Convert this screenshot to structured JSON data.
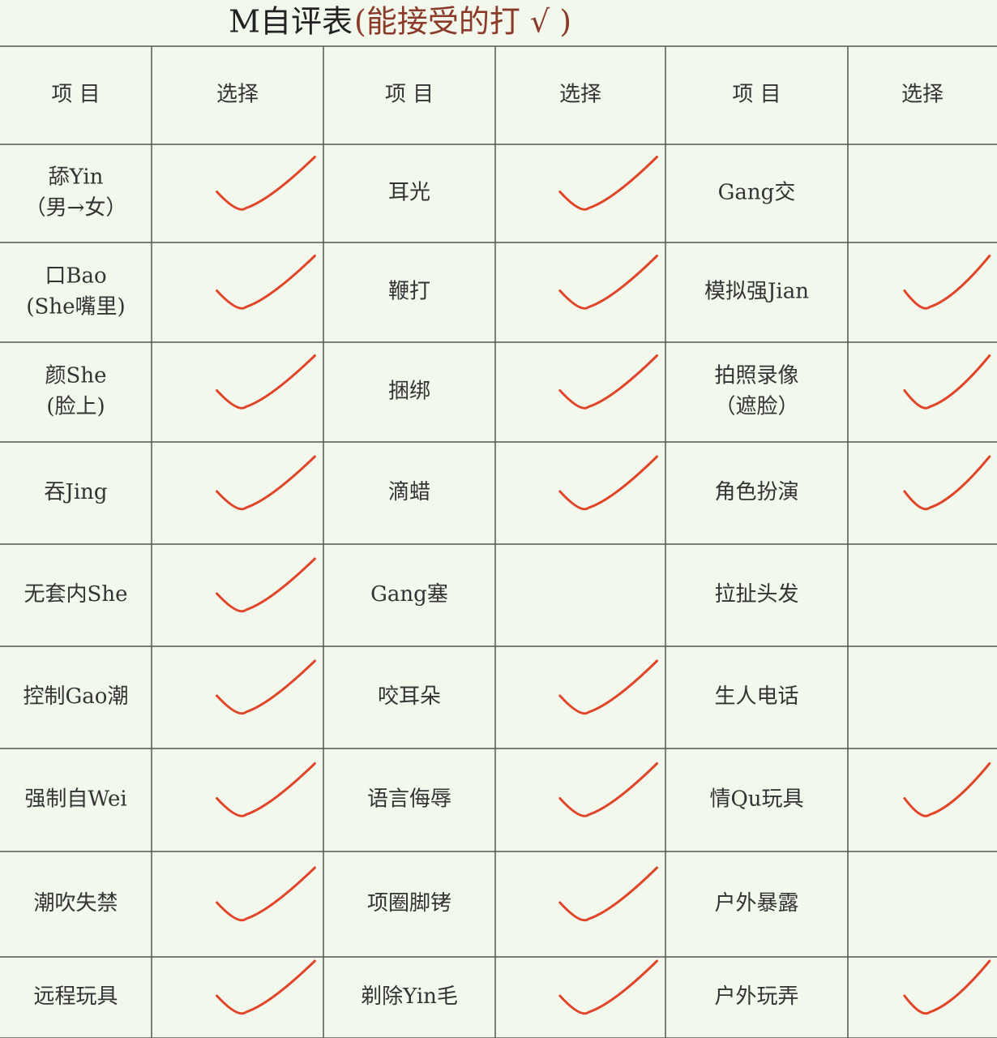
{
  "title": "M自评表",
  "title_note": "(能接受的打 √ )",
  "table": {
    "header": [
      "项 目",
      "选择",
      "项 目",
      "选择",
      "项 目",
      "选择"
    ],
    "groups": [
      [
        {
          "item": [
            "舔Yin",
            "（男→女）"
          ],
          "checked": true
        },
        {
          "item": [
            "口Bao",
            "(She嘴里)"
          ],
          "checked": true
        },
        {
          "item": [
            "颜She",
            "(脸上)"
          ],
          "checked": true
        },
        {
          "item": [
            "吞Jing"
          ],
          "checked": true
        },
        {
          "item": [
            "无套内She"
          ],
          "checked": true
        },
        {
          "item": [
            "控制Gao潮"
          ],
          "checked": true
        },
        {
          "item": [
            "强制自Wei"
          ],
          "checked": true
        },
        {
          "item": [
            "潮吹失禁"
          ],
          "checked": true
        },
        {
          "item": [
            "远程玩具"
          ],
          "checked": true
        }
      ],
      [
        {
          "item": [
            "耳光"
          ],
          "checked": true
        },
        {
          "item": [
            "鞭打"
          ],
          "checked": true
        },
        {
          "item": [
            "捆绑"
          ],
          "checked": true
        },
        {
          "item": [
            "滴蜡"
          ],
          "checked": true
        },
        {
          "item": [
            "Gang塞"
          ],
          "checked": false
        },
        {
          "item": [
            "咬耳朵"
          ],
          "checked": true
        },
        {
          "item": [
            "语言侮辱"
          ],
          "checked": true
        },
        {
          "item": [
            "项圈脚铐"
          ],
          "checked": true
        },
        {
          "item": [
            "剃除Yin毛"
          ],
          "checked": true
        }
      ],
      [
        {
          "item": [
            "Gang交"
          ],
          "checked": false
        },
        {
          "item": [
            "模拟强Jian"
          ],
          "checked": true
        },
        {
          "item": [
            "拍照录像",
            "（遮脸）"
          ],
          "checked": true
        },
        {
          "item": [
            "角色扮演"
          ],
          "checked": true
        },
        {
          "item": [
            "拉扯头发"
          ],
          "checked": false
        },
        {
          "item": [
            "生人电话"
          ],
          "checked": false
        },
        {
          "item": [
            "情Qu玩具"
          ],
          "checked": true
        },
        {
          "item": [
            "户外暴露"
          ],
          "checked": false
        },
        {
          "item": [
            "户外玩弄"
          ],
          "checked": true
        }
      ]
    ]
  }
}
